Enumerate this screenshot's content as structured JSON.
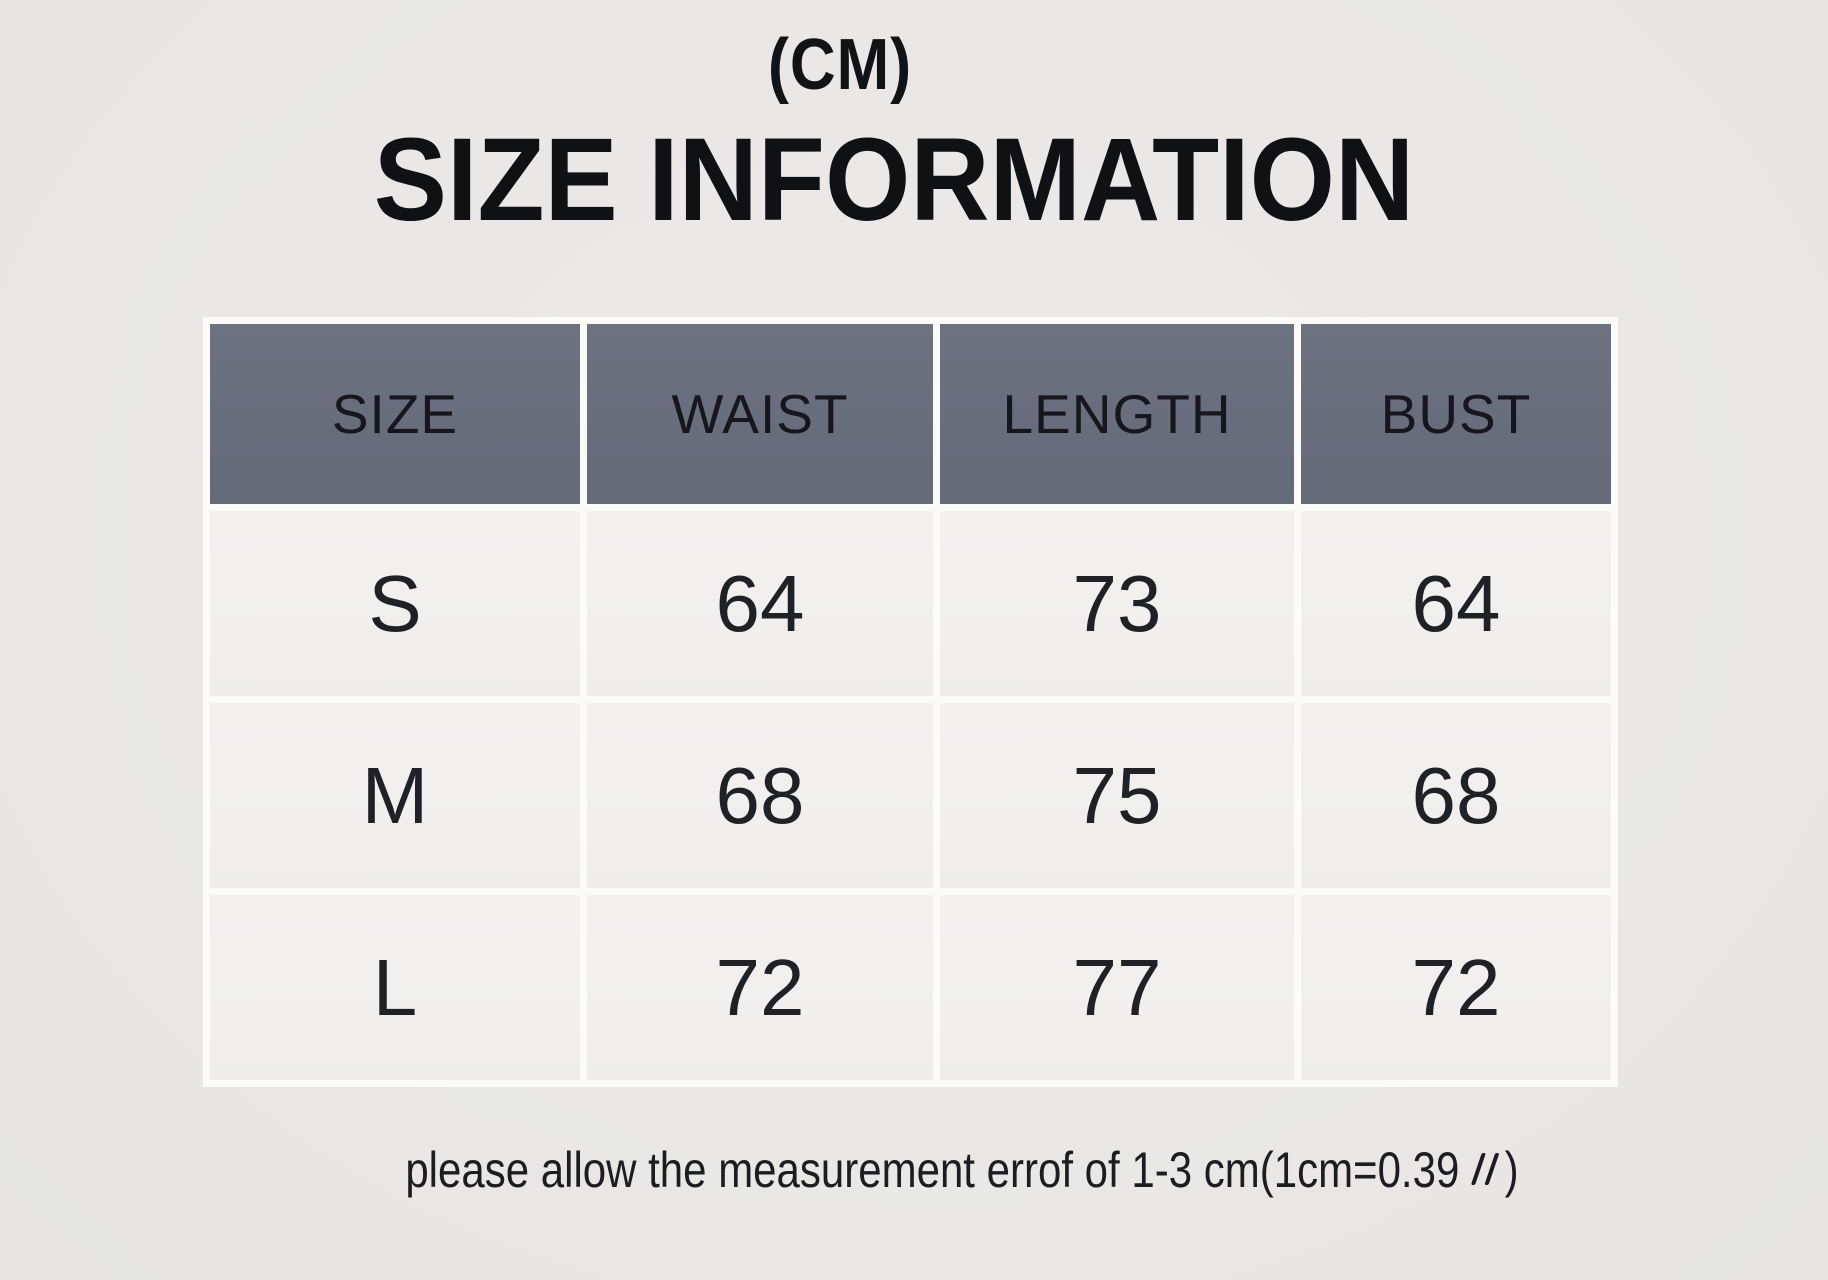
{
  "page": {
    "unit_label": "(CM)",
    "title": "SIZE INFORMATION"
  },
  "chart_data": {
    "type": "table",
    "title": "SIZE INFORMATION",
    "unit_label": "(CM)",
    "columns": [
      "SIZE",
      "WAIST",
      "LENGTH",
      "BUST"
    ],
    "rows": [
      [
        "S",
        "64",
        "73",
        "64"
      ],
      [
        "M",
        "68",
        "75",
        "68"
      ],
      [
        "L",
        "72",
        "77",
        "72"
      ]
    ],
    "note": "please allow the measurement errof of 1-3 cm(1cm=0.39 〃 )"
  },
  "note": {
    "prefix": "please allow the measurement errof of 1-3 cm(1cm=0.39",
    "mark": "〃",
    "suffix": ")"
  },
  "colors": {
    "page_background": "#e9e8e6",
    "header_background": "#686d7c",
    "header_text": "#15171d",
    "cell_background": "#f1f0ee",
    "body_text": "#202126",
    "separator": "#fbfbfa",
    "title_text": "#101114"
  }
}
